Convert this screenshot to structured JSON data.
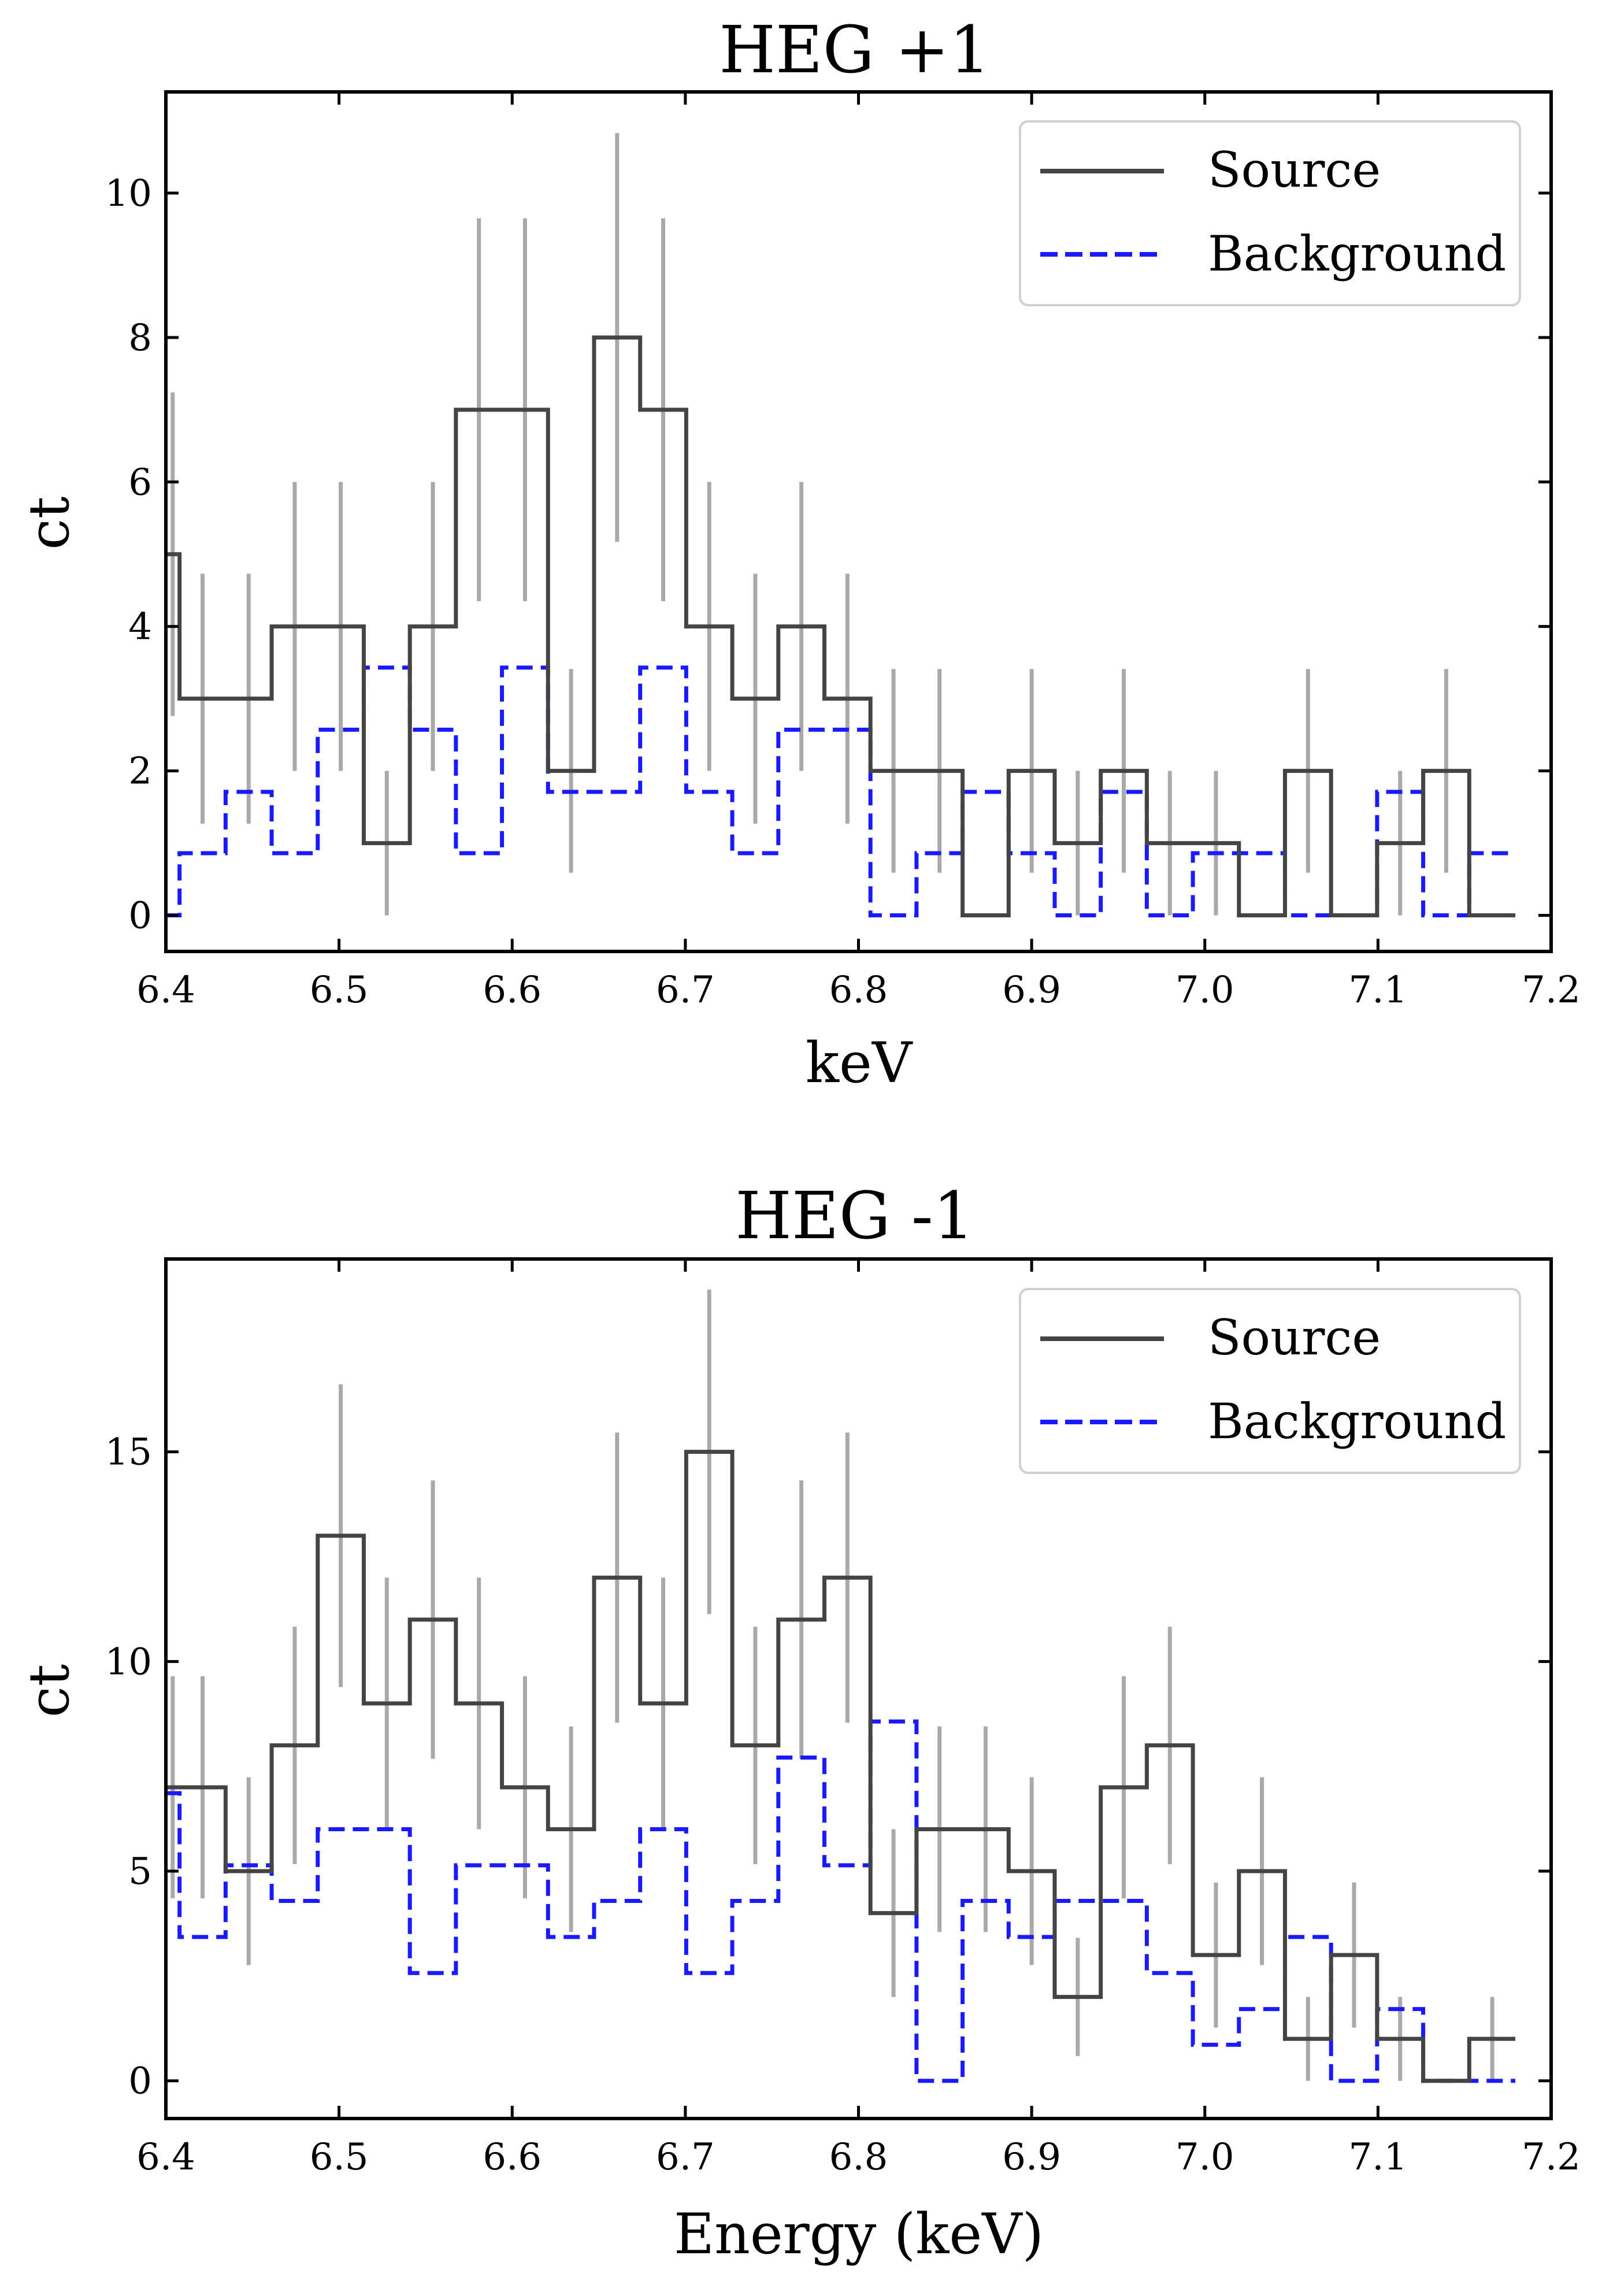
{
  "chart_data": [
    {
      "type": "line",
      "title": "HEG +1",
      "xlabel": "keV",
      "ylabel": "ct",
      "xlim": [
        6.4,
        7.2
      ],
      "ylim": [
        -0.5,
        11.4
      ],
      "xticks": [
        "6.4",
        "6.5",
        "6.6",
        "6.7",
        "6.8",
        "6.9",
        "7.0",
        "7.1",
        "7.2"
      ],
      "yticks": [
        "0",
        "2",
        "4",
        "6",
        "8",
        "10"
      ],
      "ytick_values": [
        0,
        2,
        4,
        6,
        8,
        10
      ],
      "legend_position": "top-right",
      "bin_edges": [
        6.4,
        6.4079,
        6.4345,
        6.4611,
        6.4877,
        6.5143,
        6.5409,
        6.5675,
        6.5941,
        6.6207,
        6.6473,
        6.6739,
        6.7005,
        6.7271,
        6.7537,
        6.7803,
        6.8069,
        6.8335,
        6.8601,
        6.8867,
        6.9133,
        6.9399,
        6.9665,
        6.9931,
        7.0197,
        7.0463,
        7.0729,
        7.0995,
        7.1261,
        7.1527,
        7.1793,
        7.2
      ],
      "series": [
        {
          "name": "Source",
          "style": "solid",
          "color": "#444444",
          "values": [
            5,
            3,
            3,
            4,
            4,
            1,
            4,
            7,
            7,
            2,
            8,
            7,
            4,
            3,
            4,
            3,
            2,
            2,
            0,
            2,
            1,
            2,
            1,
            1,
            0,
            2,
            0,
            1,
            2,
            0
          ],
          "errors": [
            2.24,
            1.73,
            1.73,
            2.0,
            2.0,
            1.0,
            2.0,
            2.65,
            2.65,
            1.41,
            2.83,
            2.65,
            2.0,
            1.73,
            2.0,
            1.73,
            1.41,
            1.41,
            0,
            1.41,
            1.0,
            1.41,
            1.0,
            1.0,
            0,
            1.41,
            0,
            1.0,
            1.41,
            0
          ]
        },
        {
          "name": "Background",
          "style": "dashed",
          "color": "#1a1aff",
          "values": [
            0.0,
            0.86,
            1.71,
            0.86,
            2.57,
            3.43,
            2.57,
            0.86,
            3.43,
            1.71,
            1.71,
            3.43,
            1.71,
            0.86,
            2.57,
            2.57,
            0.0,
            0.86,
            1.71,
            0.86,
            0.0,
            1.71,
            0.0,
            0.86,
            0.86,
            0.0,
            0.0,
            1.71,
            0.0,
            0.86
          ],
          "errors": []
        }
      ]
    },
    {
      "type": "line",
      "title": "HEG -1",
      "xlabel": "Energy (keV)",
      "ylabel": "ct",
      "xlim": [
        6.4,
        7.2
      ],
      "ylim": [
        -0.9,
        19.6
      ],
      "xticks": [
        "6.4",
        "6.5",
        "6.6",
        "6.7",
        "6.8",
        "6.9",
        "7.0",
        "7.1",
        "7.2"
      ],
      "yticks": [
        "0",
        "5",
        "10",
        "15"
      ],
      "ytick_values": [
        0,
        5,
        10,
        15
      ],
      "legend_position": "top-right",
      "bin_edges": [
        6.4,
        6.4079,
        6.4345,
        6.4611,
        6.4877,
        6.5143,
        6.5409,
        6.5675,
        6.5941,
        6.6207,
        6.6473,
        6.6739,
        6.7005,
        6.7271,
        6.7537,
        6.7803,
        6.8069,
        6.8335,
        6.8601,
        6.8867,
        6.9133,
        6.9399,
        6.9665,
        6.9931,
        7.0197,
        7.0463,
        7.0729,
        7.0995,
        7.1261,
        7.1527,
        7.1793,
        7.2
      ],
      "series": [
        {
          "name": "Source",
          "style": "solid",
          "color": "#444444",
          "values": [
            7,
            7,
            5,
            8,
            13,
            9,
            11,
            9,
            7,
            6,
            12,
            9,
            15,
            8,
            11,
            12,
            4,
            6,
            6,
            5,
            2,
            7,
            8,
            3,
            5,
            1,
            3,
            1,
            0,
            1
          ],
          "errors": [
            2.65,
            2.65,
            2.24,
            2.83,
            3.61,
            3.0,
            3.32,
            3.0,
            2.65,
            2.45,
            3.46,
            3.0,
            3.87,
            2.83,
            3.32,
            3.46,
            2.0,
            2.45,
            2.45,
            2.24,
            1.41,
            2.65,
            2.83,
            1.73,
            2.24,
            1.0,
            1.73,
            1.0,
            0,
            1.0
          ]
        },
        {
          "name": "Background",
          "style": "dashed",
          "color": "#1a1aff",
          "values": [
            6.86,
            3.43,
            5.14,
            4.29,
            6.0,
            6.0,
            2.57,
            5.14,
            5.14,
            3.43,
            4.29,
            6.0,
            2.57,
            4.29,
            7.71,
            5.14,
            8.57,
            0.0,
            4.29,
            3.43,
            4.29,
            4.29,
            2.57,
            0.86,
            1.71,
            3.43,
            0.0,
            1.71,
            0.0,
            0.0
          ],
          "errors": []
        }
      ]
    }
  ]
}
